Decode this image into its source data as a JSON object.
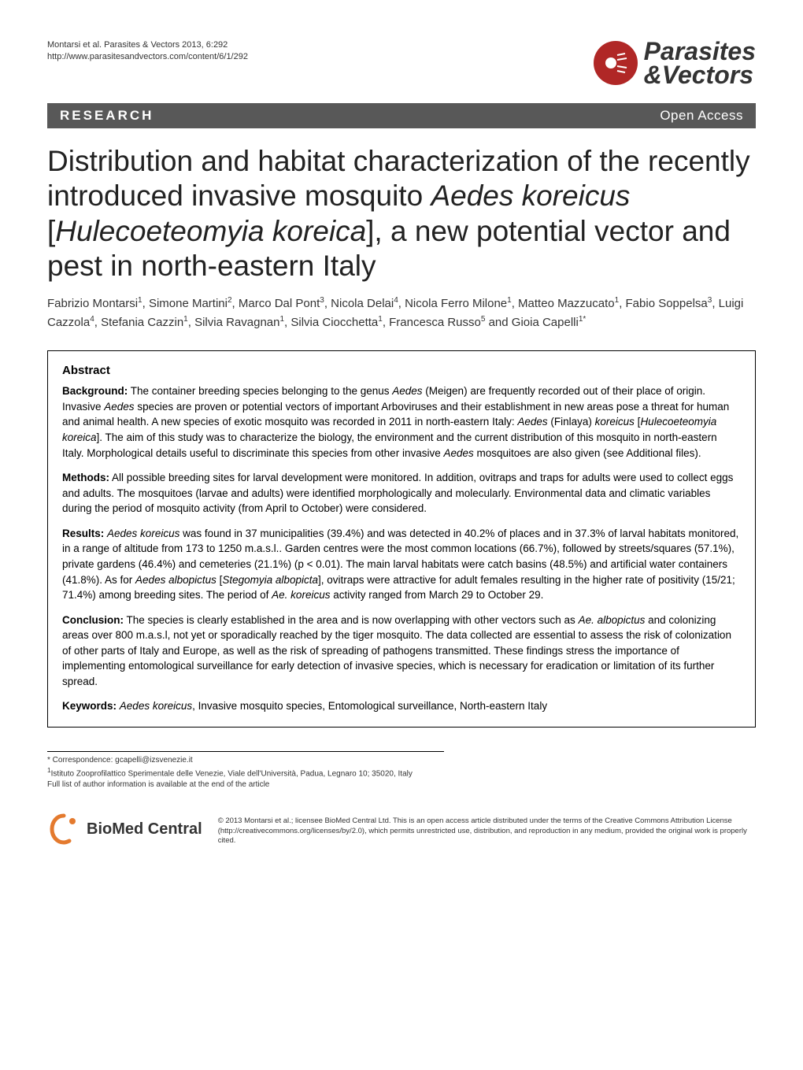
{
  "header": {
    "citation": "Montarsi et al. Parasites & Vectors 2013, 6:292",
    "url": "http://www.parasitesandvectors.com/content/6/1/292",
    "journal_line1": "Parasites",
    "journal_line2": "&Vectors"
  },
  "bar": {
    "left": "RESEARCH",
    "right": "Open Access"
  },
  "title": {
    "pre": "Distribution and habitat characterization of the recently introduced invasive mosquito ",
    "italic1": "Aedes koreicus",
    "mid": " [",
    "italic2": "Hulecoeteomyia koreica",
    "post": "], a new potential vector and pest in north-eastern Italy"
  },
  "authors_html": "Fabrizio Montarsi<sup>1</sup>, Simone Martini<sup>2</sup>, Marco Dal Pont<sup>3</sup>, Nicola Delai<sup>4</sup>, Nicola Ferro Milone<sup>1</sup>, Matteo Mazzucato<sup>1</sup>, Fabio Soppelsa<sup>3</sup>, Luigi Cazzola<sup>4</sup>, Stefania Cazzin<sup>1</sup>, Silvia Ravagnan<sup>1</sup>, Silvia Ciocchetta<sup>1</sup>, Francesca Russo<sup>5</sup> and Gioia Capelli<sup>1*</sup>",
  "abstract": {
    "heading": "Abstract",
    "background_label": "Background:",
    "background": " The container breeding species belonging to the genus <span class=\"italic\">Aedes</span> (Meigen) are frequently recorded out of their place of origin. Invasive <span class=\"italic\">Aedes</span> species are proven or potential vectors of important Arboviruses and their establishment in new areas pose a threat for human and animal health. A new species of exotic mosquito was recorded in 2011 in north-eastern Italy: <span class=\"italic\">Aedes</span> (Finlaya) <span class=\"italic\">koreicus</span> [<span class=\"italic\">Hulecoeteomyia koreica</span>]. The aim of this study was to characterize the biology, the environment and the current distribution of this mosquito in north-eastern Italy. Morphological details useful to discriminate this species from other invasive <span class=\"italic\">Aedes</span> mosquitoes are also given (see Additional files).",
    "methods_label": "Methods:",
    "methods": " All possible breeding sites for larval development were monitored. In addition, ovitraps and traps for adults were used to collect eggs and adults. The mosquitoes (larvae and adults) were identified morphologically and molecularly. Environmental data and climatic variables during the period of mosquito activity (from April to October) were considered.",
    "results_label": "Results:",
    "results": " <span class=\"italic\">Aedes koreicus</span> was found in 37 municipalities (39.4%) and was detected in 40.2% of places and in 37.3% of larval habitats monitored, in a range of altitude from 173 to 1250 m.a.s.l.. Garden centres were the most common locations (66.7%), followed by streets/squares (57.1%), private gardens (46.4%) and cemeteries (21.1%) (p < 0.01). The main larval habitats were catch basins (48.5%) and artificial water containers (41.8%). As for <span class=\"italic\">Aedes albopictus</span> [<span class=\"italic\">Stegomyia albopicta</span>], ovitraps were attractive for adult females resulting in the higher rate of positivity (15/21; 71.4%) among breeding sites. The period of <span class=\"italic\">Ae. koreicus</span> activity ranged from March 29 to October 29.",
    "conclusion_label": "Conclusion:",
    "conclusion": " The species is clearly established in the area and is now overlapping with other vectors such as <span class=\"italic\">Ae. albopictus</span> and colonizing areas over 800 m.a.s.l, not yet or sporadically reached by the tiger mosquito. The data collected are essential to assess the risk of colonization of other parts of Italy and Europe, as well as the risk of spreading of pathogens transmitted. These findings stress the importance of implementing entomological surveillance for early detection of invasive species, which is necessary for eradication or limitation of its further spread.",
    "keywords_label": "Keywords:",
    "keywords": " <span class=\"italic\">Aedes koreicus</span>, Invasive mosquito species, Entomological surveillance, North-eastern Italy"
  },
  "footer": {
    "correspondence": "* Correspondence: gcapelli@izsvenezie.it",
    "affiliation": "1Istituto Zooprofilattico Sperimentale delle Venezie, Viale dell'Università, Padua, Legnaro 10; 35020, Italy",
    "full_list": "Full list of author information is available at the end of the article",
    "biomed": "BioMed Central",
    "license": "© 2013 Montarsi et al.; licensee BioMed Central Ltd. This is an open access article distributed under the terms of the Creative Commons Attribution License (http://creativecommons.org/licenses/by/2.0), which permits unrestricted use, distribution, and reproduction in any medium, provided the original work is properly cited."
  },
  "colors": {
    "logo_bg": "#b02726",
    "bar_bg": "#585858",
    "biomed_orange": "#e47a2e"
  }
}
